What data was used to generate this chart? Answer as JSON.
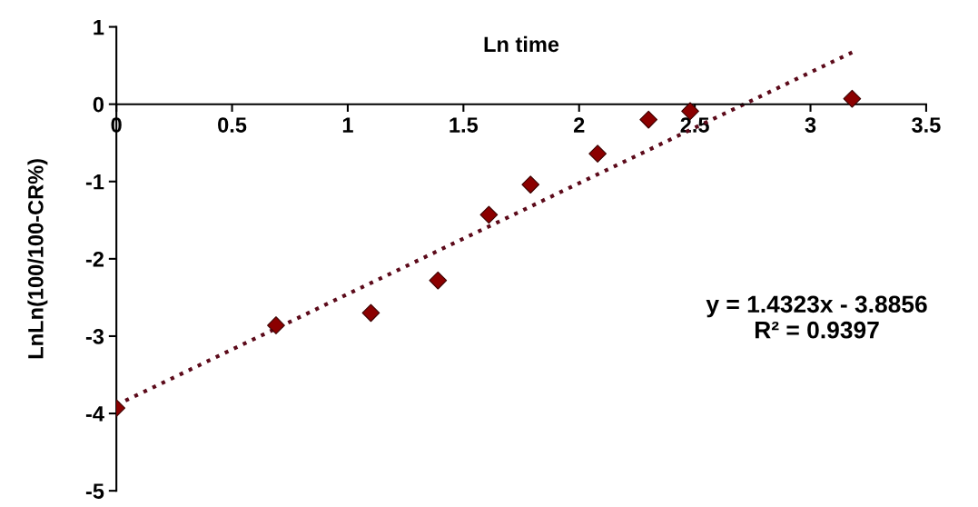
{
  "chart_data": {
    "type": "scatter",
    "xlabel": "Ln time",
    "ylabel": "LnLn(100/100-CR%)",
    "xlim": [
      0,
      3.5
    ],
    "ylim": [
      -5,
      1
    ],
    "xticks": [
      0,
      0.5,
      1,
      1.5,
      2,
      2.5,
      3,
      3.5
    ],
    "yticks": [
      -5,
      -4,
      -3,
      -2,
      -1,
      0,
      1
    ],
    "grid": false,
    "legend": false,
    "series": [
      {
        "color": "#8b0000",
        "marker": "diamond",
        "x": [
          0,
          0.69,
          1.1,
          1.39,
          1.61,
          1.79,
          2.08,
          2.3,
          2.48,
          3.18
        ],
        "values": [
          -3.93,
          -2.86,
          -2.7,
          -2.28,
          -1.43,
          -1.04,
          -0.64,
          -0.2,
          -0.09,
          0.07
        ]
      },
      {
        "type": "line",
        "color": "#5c0a1a",
        "line_style": "dotted",
        "marker": "none",
        "x": [
          0,
          3.18
        ],
        "values": [
          -3.89,
          0.67
        ]
      }
    ],
    "annotations": [
      "y = 1.4323x - 3.8856\nR² = 0.9397"
    ]
  }
}
